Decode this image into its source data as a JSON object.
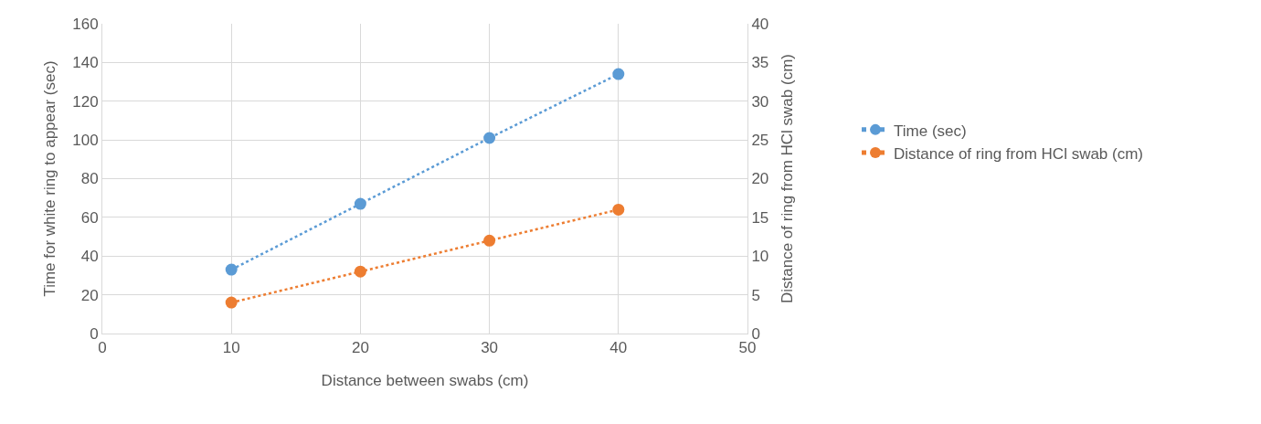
{
  "chart_data": {
    "type": "line",
    "xlabel": "Distance between swabs (cm)",
    "ylabel": "Time for white ring to appear (sec)",
    "y2label": "Distance of ring from HCl swab (cm)",
    "x": [
      10,
      20,
      30,
      40
    ],
    "series": [
      {
        "name": "Time (sec)",
        "color": "#5b9bd5",
        "values": [
          33,
          67,
          101,
          134
        ]
      },
      {
        "name": "Distance of ring from HCl swab (cm)",
        "color": "#ed7d31",
        "values": [
          4,
          8,
          12,
          16
        ],
        "axis": "y2"
      }
    ],
    "xlim": [
      0,
      50
    ],
    "xticks": [
      0,
      10,
      20,
      30,
      40,
      50
    ],
    "ylim": [
      0,
      160
    ],
    "yticks": [
      0,
      20,
      40,
      60,
      80,
      100,
      120,
      140,
      160
    ],
    "y2lim": [
      0,
      40
    ],
    "y2ticks": [
      0,
      5,
      10,
      15,
      20,
      25,
      30,
      35,
      40
    ],
    "grid": true,
    "legend": "right",
    "marker": "circle",
    "line_style": "dotted"
  }
}
